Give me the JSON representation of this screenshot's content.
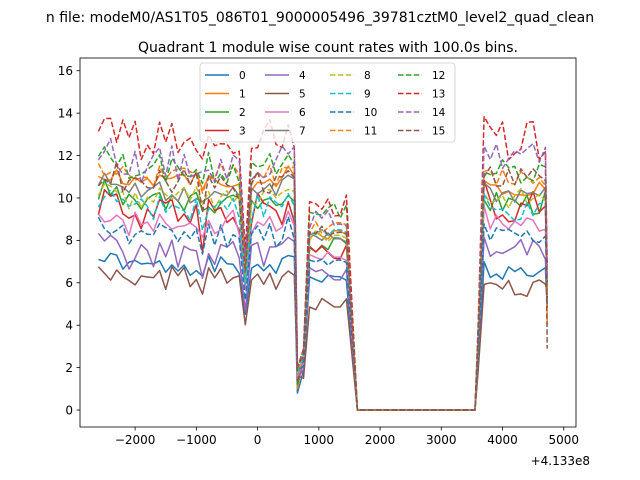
{
  "chart_data": {
    "type": "line",
    "suptitle": "n file: modeM0/AS1T05_086T01_9000005496_39781cztM0_level2_quad_clean",
    "title": "Quadrant 1 module wise count rates with 100.0s bins.",
    "xlabel": "",
    "ylabel": "",
    "x_offset_label": "+4.133e8",
    "xlim": [
      -2900,
      5200
    ],
    "ylim": [
      -0.8,
      16.6
    ],
    "xticks": [
      -2000,
      -1000,
      0,
      1000,
      2000,
      3000,
      4000,
      5000
    ],
    "xtick_labels": [
      "−2000",
      "−1000",
      "0",
      "1000",
      "2000",
      "3000",
      "4000",
      "5000"
    ],
    "yticks": [
      0,
      2,
      4,
      6,
      8,
      10,
      12,
      14,
      16
    ],
    "ytick_labels": [
      "0",
      "2",
      "4",
      "6",
      "8",
      "10",
      "12",
      "14",
      "16"
    ],
    "legend_position": "upper-center",
    "legend_columns": 4,
    "time_bins": {
      "segment1": {
        "start": -2600,
        "step": 100,
        "count": 33
      },
      "gap_point": 650,
      "segment2": {
        "start": 750,
        "step": 100,
        "count": 8
      },
      "zero_segment": [
        1630,
        3550
      ],
      "segment3": {
        "start": 3600,
        "step": 100,
        "count": 12
      },
      "end_point": 4730
    },
    "gap_values": [
      0.8,
      1.0,
      1.2,
      1.4,
      1.5,
      1.6,
      1.6,
      1.7,
      1.75,
      1.8,
      1.85,
      1.9,
      1.95,
      2.0,
      2.05,
      2.1
    ],
    "end_values": [
      4.8,
      4.0,
      5.2,
      5.0,
      5.4,
      5.6,
      6.0,
      5.8,
      5.2,
      5.0,
      6.0,
      5.5,
      6.2,
      6.8,
      6.3,
      2.9
    ],
    "series": [
      {
        "name": "0",
        "label": "0",
        "color": "#1f77b4",
        "dashed": false,
        "level": 6.8,
        "b2": 6.2,
        "b3": 6.5,
        "amp": 0.35,
        "seed": 1
      },
      {
        "name": "1",
        "label": "1",
        "color": "#ff7f0e",
        "dashed": false,
        "level": 10.8,
        "b2": 8.3,
        "b3": 10.5,
        "amp": 0.4,
        "seed": 2
      },
      {
        "name": "2",
        "label": "2",
        "color": "#2ca02c",
        "dashed": false,
        "level": 9.8,
        "b2": 7.8,
        "b3": 9.8,
        "amp": 0.6,
        "seed": 3
      },
      {
        "name": "3",
        "label": "3",
        "color": "#d62728",
        "dashed": false,
        "level": 9.3,
        "b2": 7.6,
        "b3": 9.6,
        "amp": 0.8,
        "seed": 4
      },
      {
        "name": "4",
        "label": "4",
        "color": "#9467bd",
        "dashed": false,
        "level": 7.4,
        "b2": 6.4,
        "b3": 7.6,
        "amp": 0.6,
        "seed": 5
      },
      {
        "name": "5",
        "label": "5",
        "color": "#8c564b",
        "dashed": false,
        "level": 6.2,
        "b2": 5.0,
        "b3": 5.8,
        "amp": 0.45,
        "seed": 6
      },
      {
        "name": "6",
        "label": "6",
        "color": "#e377c2",
        "dashed": false,
        "level": 8.8,
        "b2": 7.3,
        "b3": 8.8,
        "amp": 0.5,
        "seed": 7
      },
      {
        "name": "7",
        "label": "7",
        "color": "#7f7f7f",
        "dashed": false,
        "level": 10.3,
        "b2": 8.1,
        "b3": 10.2,
        "amp": 0.5,
        "seed": 8
      },
      {
        "name": "8",
        "label": "8",
        "color": "#bcbd22",
        "dashed": true,
        "level": 10.0,
        "b2": 8.2,
        "b3": 10.0,
        "amp": 0.5,
        "seed": 9
      },
      {
        "name": "9",
        "label": "9",
        "color": "#17becf",
        "dashed": true,
        "level": 9.6,
        "b2": 8.4,
        "b3": 9.3,
        "amp": 0.5,
        "seed": 10
      },
      {
        "name": "10",
        "label": "10",
        "color": "#1f77b4",
        "dashed": true,
        "level": 8.3,
        "b2": 6.9,
        "b3": 8.2,
        "amp": 0.5,
        "seed": 11
      },
      {
        "name": "11",
        "label": "11",
        "color": "#ff7f0e",
        "dashed": true,
        "level": 11.0,
        "b2": 8.6,
        "b3": 11.0,
        "amp": 0.5,
        "seed": 12
      },
      {
        "name": "12",
        "label": "12",
        "color": "#2ca02c",
        "dashed": true,
        "level": 11.4,
        "b2": 9.4,
        "b3": 11.3,
        "amp": 0.6,
        "seed": 13
      },
      {
        "name": "13",
        "label": "13",
        "color": "#d62728",
        "dashed": true,
        "level": 12.6,
        "b2": 9.6,
        "b3": 12.7,
        "amp": 0.9,
        "seed": 14
      },
      {
        "name": "14",
        "label": "14",
        "color": "#9467bd",
        "dashed": true,
        "level": 11.6,
        "b2": 9.0,
        "b3": 12.0,
        "amp": 0.7,
        "seed": 15
      },
      {
        "name": "15",
        "label": "15",
        "color": "#8c564b",
        "dashed": true,
        "level": 10.6,
        "b2": 8.5,
        "b3": 11.0,
        "amp": 0.6,
        "seed": 16
      }
    ]
  }
}
